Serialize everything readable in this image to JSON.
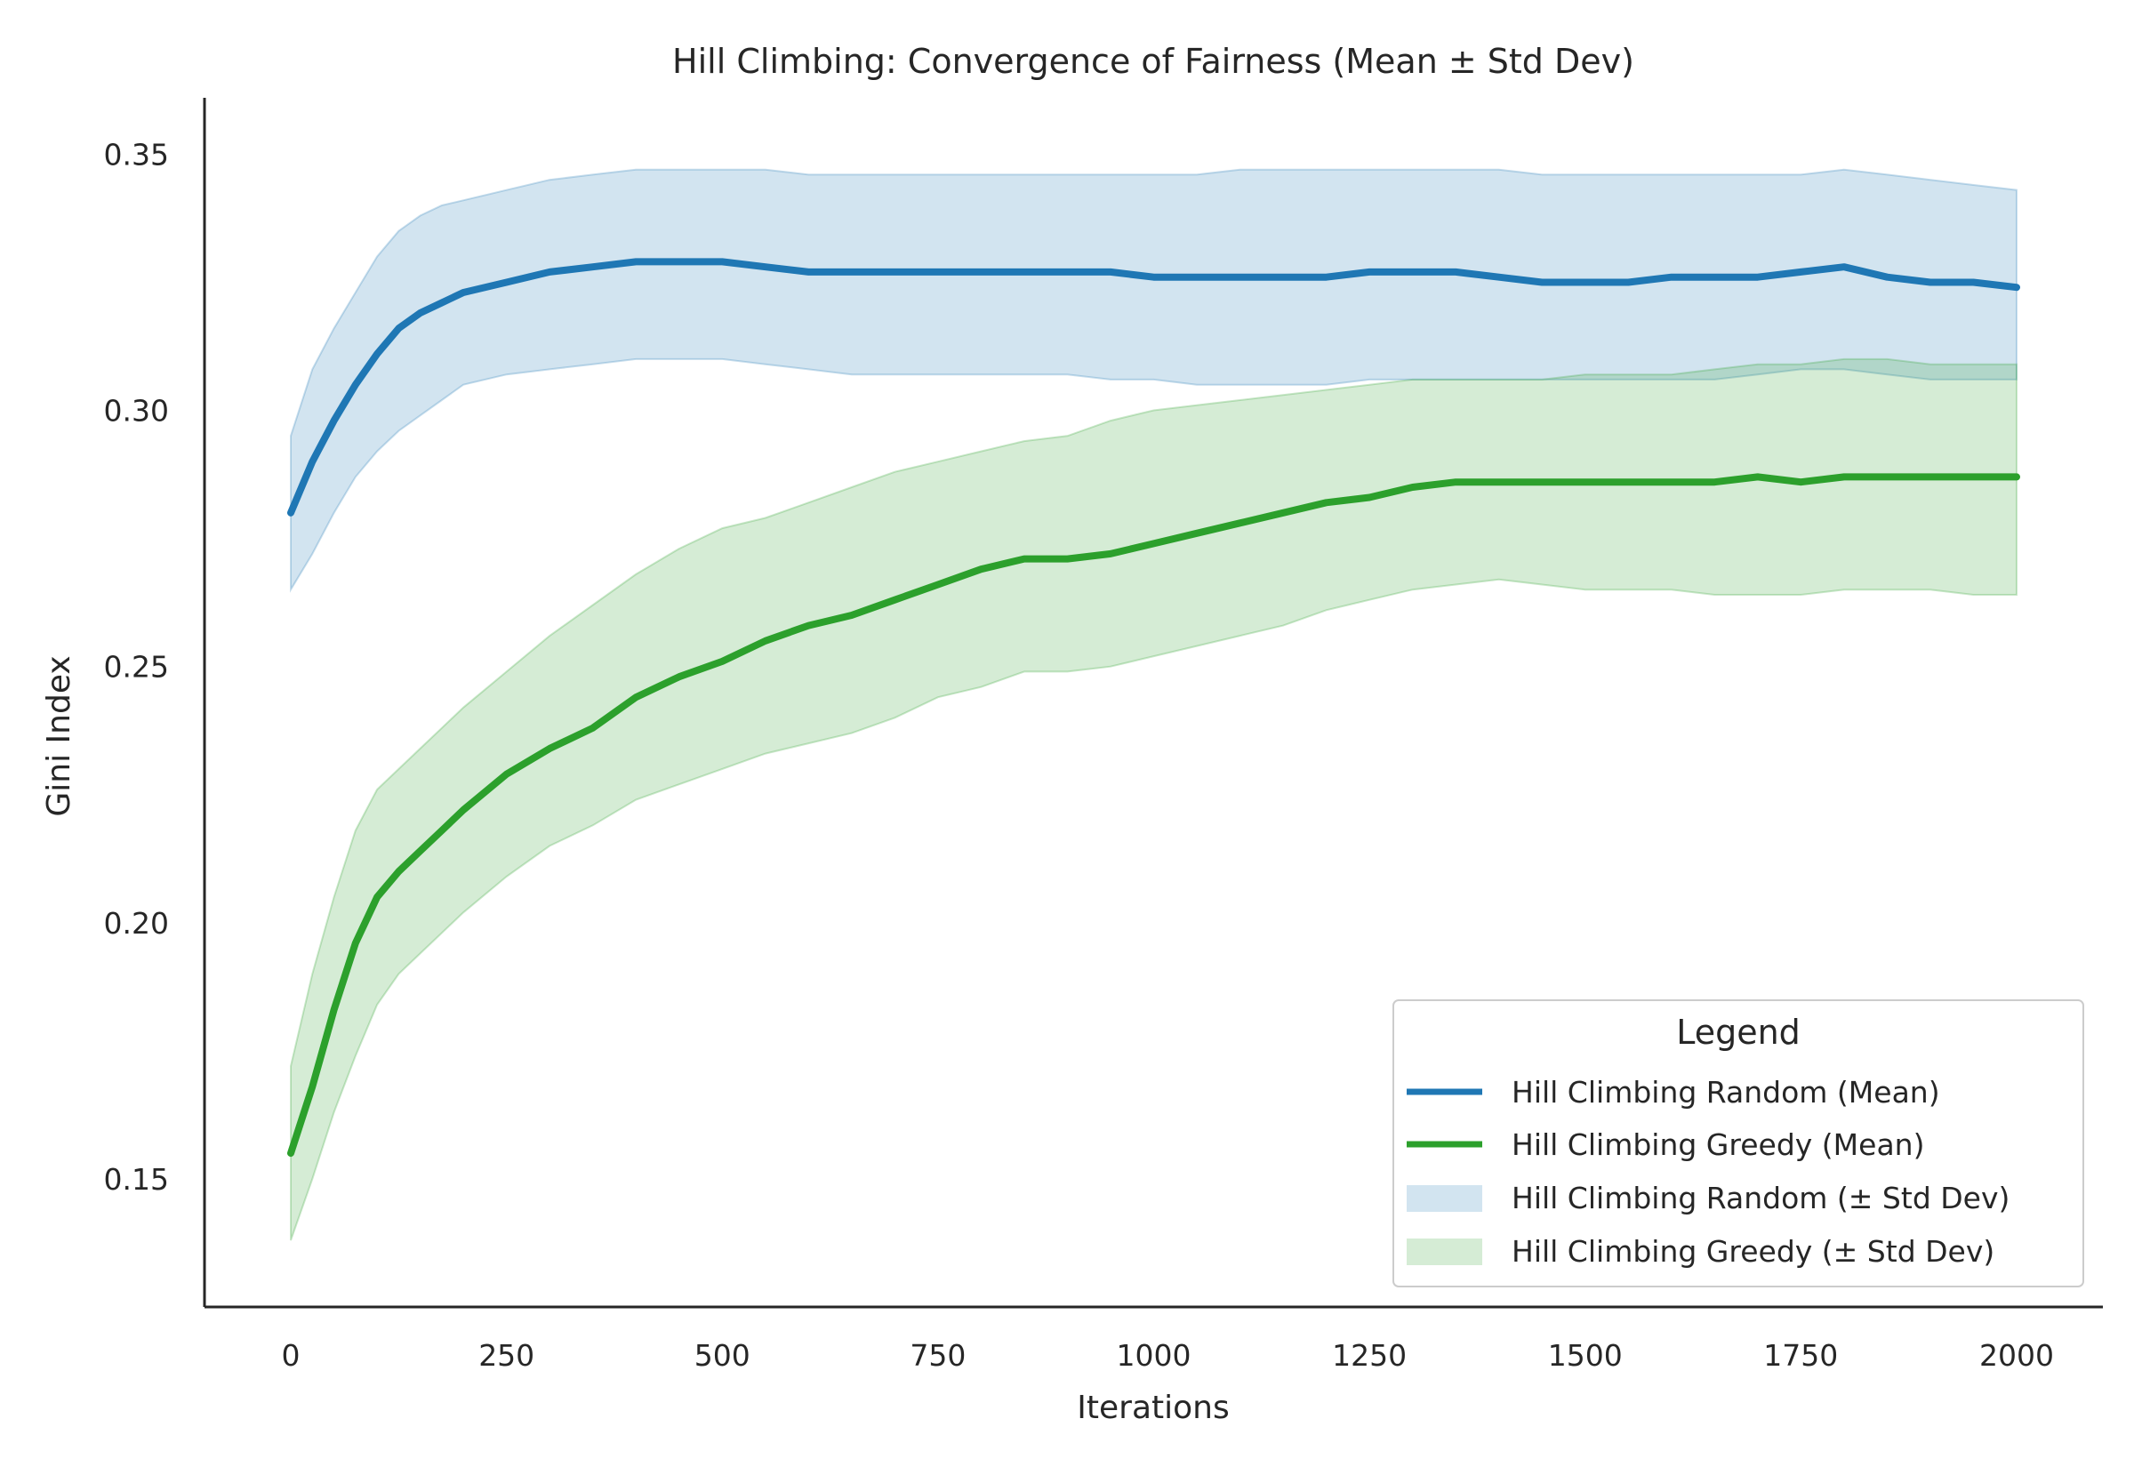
{
  "chart_data": {
    "type": "line",
    "title": "Hill Climbing: Convergence of Fairness (Mean ± Std Dev)",
    "xlabel": "Iterations",
    "ylabel": "Gini Index",
    "xlim": [
      -100,
      2100
    ],
    "ylim": [
      0.125,
      0.361
    ],
    "xticks": [
      0,
      250,
      500,
      750,
      1000,
      1250,
      1500,
      1750,
      2000
    ],
    "xtick_labels": [
      "0",
      "250",
      "500",
      "750",
      "1000",
      "1250",
      "1500",
      "1750",
      "2000"
    ],
    "yticks": [
      0.15,
      0.2,
      0.25,
      0.3,
      0.35
    ],
    "ytick_labels": [
      "0.15",
      "0.20",
      "0.25",
      "0.30",
      "0.35"
    ],
    "grid": false,
    "legend": {
      "title": "Legend",
      "placement": "lower-right",
      "entries": [
        "Hill Climbing Random (Mean)",
        "Hill Climbing Greedy (Mean)",
        "Hill Climbing Random (± Std Dev)",
        "Hill Climbing Greedy (± Std Dev)"
      ]
    },
    "x": [
      0,
      25,
      50,
      75,
      100,
      125,
      150,
      175,
      200,
      250,
      300,
      350,
      400,
      450,
      500,
      550,
      600,
      650,
      700,
      750,
      800,
      850,
      900,
      950,
      1000,
      1050,
      1100,
      1150,
      1200,
      1250,
      1300,
      1350,
      1400,
      1450,
      1500,
      1550,
      1600,
      1650,
      1700,
      1750,
      1800,
      1850,
      1900,
      1950,
      2000
    ],
    "series": [
      {
        "name": "Hill Climbing Random (Mean)",
        "kind": "line",
        "color": "#1f77b4",
        "values": [
          0.28,
          0.29,
          0.298,
          0.305,
          0.311,
          0.316,
          0.319,
          0.321,
          0.323,
          0.325,
          0.327,
          0.328,
          0.329,
          0.329,
          0.329,
          0.328,
          0.327,
          0.327,
          0.327,
          0.327,
          0.327,
          0.327,
          0.327,
          0.327,
          0.326,
          0.326,
          0.326,
          0.326,
          0.326,
          0.327,
          0.327,
          0.327,
          0.326,
          0.325,
          0.325,
          0.325,
          0.326,
          0.326,
          0.326,
          0.327,
          0.328,
          0.326,
          0.325,
          0.325,
          0.324
        ]
      },
      {
        "name": "Hill Climbing Greedy (Mean)",
        "kind": "line",
        "color": "#2ca02c",
        "values": [
          0.155,
          0.168,
          0.183,
          0.196,
          0.205,
          0.21,
          0.214,
          0.218,
          0.222,
          0.229,
          0.234,
          0.238,
          0.244,
          0.248,
          0.251,
          0.255,
          0.258,
          0.26,
          0.263,
          0.266,
          0.269,
          0.271,
          0.271,
          0.272,
          0.274,
          0.276,
          0.278,
          0.28,
          0.282,
          0.283,
          0.285,
          0.286,
          0.286,
          0.286,
          0.286,
          0.286,
          0.286,
          0.286,
          0.287,
          0.286,
          0.287,
          0.287,
          0.287,
          0.287,
          0.287
        ]
      },
      {
        "name": "Hill Climbing Random (± Std Dev)",
        "kind": "band",
        "color": "#1f77b4",
        "lower": [
          0.265,
          0.272,
          0.28,
          0.287,
          0.292,
          0.296,
          0.299,
          0.302,
          0.305,
          0.307,
          0.308,
          0.309,
          0.31,
          0.31,
          0.31,
          0.309,
          0.308,
          0.307,
          0.307,
          0.307,
          0.307,
          0.307,
          0.307,
          0.306,
          0.306,
          0.305,
          0.305,
          0.305,
          0.305,
          0.306,
          0.306,
          0.306,
          0.306,
          0.306,
          0.306,
          0.306,
          0.306,
          0.306,
          0.307,
          0.308,
          0.308,
          0.307,
          0.306,
          0.306,
          0.306
        ],
        "upper": [
          0.295,
          0.308,
          0.316,
          0.323,
          0.33,
          0.335,
          0.338,
          0.34,
          0.341,
          0.343,
          0.345,
          0.346,
          0.347,
          0.347,
          0.347,
          0.347,
          0.346,
          0.346,
          0.346,
          0.346,
          0.346,
          0.346,
          0.346,
          0.346,
          0.346,
          0.346,
          0.347,
          0.347,
          0.347,
          0.347,
          0.347,
          0.347,
          0.347,
          0.346,
          0.346,
          0.346,
          0.346,
          0.346,
          0.346,
          0.346,
          0.347,
          0.346,
          0.345,
          0.344,
          0.343
        ]
      },
      {
        "name": "Hill Climbing Greedy (± Std Dev)",
        "kind": "band",
        "color": "#2ca02c",
        "lower": [
          0.138,
          0.15,
          0.163,
          0.174,
          0.184,
          0.19,
          0.194,
          0.198,
          0.202,
          0.209,
          0.215,
          0.219,
          0.224,
          0.227,
          0.23,
          0.233,
          0.235,
          0.237,
          0.24,
          0.244,
          0.246,
          0.249,
          0.249,
          0.25,
          0.252,
          0.254,
          0.256,
          0.258,
          0.261,
          0.263,
          0.265,
          0.266,
          0.267,
          0.266,
          0.265,
          0.265,
          0.265,
          0.264,
          0.264,
          0.264,
          0.265,
          0.265,
          0.265,
          0.264,
          0.264
        ],
        "upper": [
          0.172,
          0.19,
          0.205,
          0.218,
          0.226,
          0.23,
          0.234,
          0.238,
          0.242,
          0.249,
          0.256,
          0.262,
          0.268,
          0.273,
          0.277,
          0.279,
          0.282,
          0.285,
          0.288,
          0.29,
          0.292,
          0.294,
          0.295,
          0.298,
          0.3,
          0.301,
          0.302,
          0.303,
          0.304,
          0.305,
          0.306,
          0.306,
          0.306,
          0.306,
          0.307,
          0.307,
          0.307,
          0.308,
          0.309,
          0.309,
          0.31,
          0.31,
          0.309,
          0.309,
          0.309
        ]
      }
    ]
  }
}
